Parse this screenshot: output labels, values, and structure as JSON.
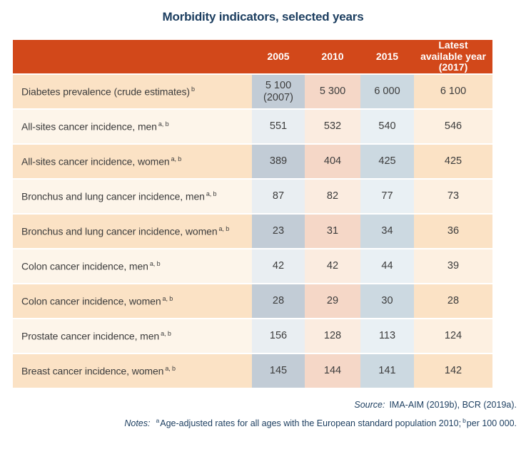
{
  "title": "Morbidity indicators, selected years",
  "table": {
    "header": {
      "cols": [
        "2005",
        "2010",
        "2015",
        "Latest available year (2017)"
      ]
    },
    "rows": [
      {
        "label": "Diabetes prevalence (crude estimates)",
        "sup": "b",
        "values": [
          "5 100\n(2007)",
          "5 300",
          "6 000",
          "6 100"
        ]
      },
      {
        "label": "All-sites cancer incidence, men",
        "sup": "a, b",
        "values": [
          "551",
          "532",
          "540",
          "546"
        ]
      },
      {
        "label": "All-sites cancer incidence, women",
        "sup": "a, b",
        "values": [
          "389",
          "404",
          "425",
          "425"
        ]
      },
      {
        "label": "Bronchus and lung cancer incidence, men",
        "sup": "a, b",
        "values": [
          "87",
          "82",
          "77",
          "73"
        ]
      },
      {
        "label": "Bronchus and lung cancer incidence, women",
        "sup": "a, b",
        "values": [
          "23",
          "31",
          "34",
          "36"
        ]
      },
      {
        "label": "Colon cancer incidence, men",
        "sup": "a, b",
        "values": [
          "42",
          "42",
          "44",
          "39"
        ]
      },
      {
        "label": "Colon cancer incidence, women",
        "sup": "a, b",
        "values": [
          "28",
          "29",
          "30",
          "28"
        ]
      },
      {
        "label": "Prostate cancer incidence, men",
        "sup": "a, b",
        "values": [
          "156",
          "128",
          "113",
          "124"
        ]
      },
      {
        "label": "Breast cancer incidence, women",
        "sup": "a, b",
        "values": [
          "145",
          "144",
          "141",
          "142"
        ]
      }
    ]
  },
  "footer": {
    "source_label": "Source:",
    "source_text": "IMA-AIM (2019b), BCR (2019a).",
    "notes_label": "Notes:",
    "note_a_marker": "a",
    "note_a_text": "Age-adjusted rates for all ages with the European standard population 2010;",
    "note_b_marker": "b",
    "note_b_text": "per 100 000."
  },
  "colors": {
    "header_bg": "#d2481a",
    "title_text": "#1b3d5f",
    "footer_text": "#1b3d5f",
    "body_text": "#3c3c3c",
    "row_dark_bg": "#fbe2c5",
    "row_dark_col2005": "#c2ccd6",
    "row_dark_col2010": "#f5d7c7",
    "row_dark_col2015": "#ccd9e1",
    "row_light_bg": "#fdf5ea",
    "row_light_col2005": "#e9eef2",
    "row_light_col2010": "#fbece0",
    "row_light_col2015": "#e9f0f4",
    "row_light_col2017": "#fdf0e1"
  }
}
